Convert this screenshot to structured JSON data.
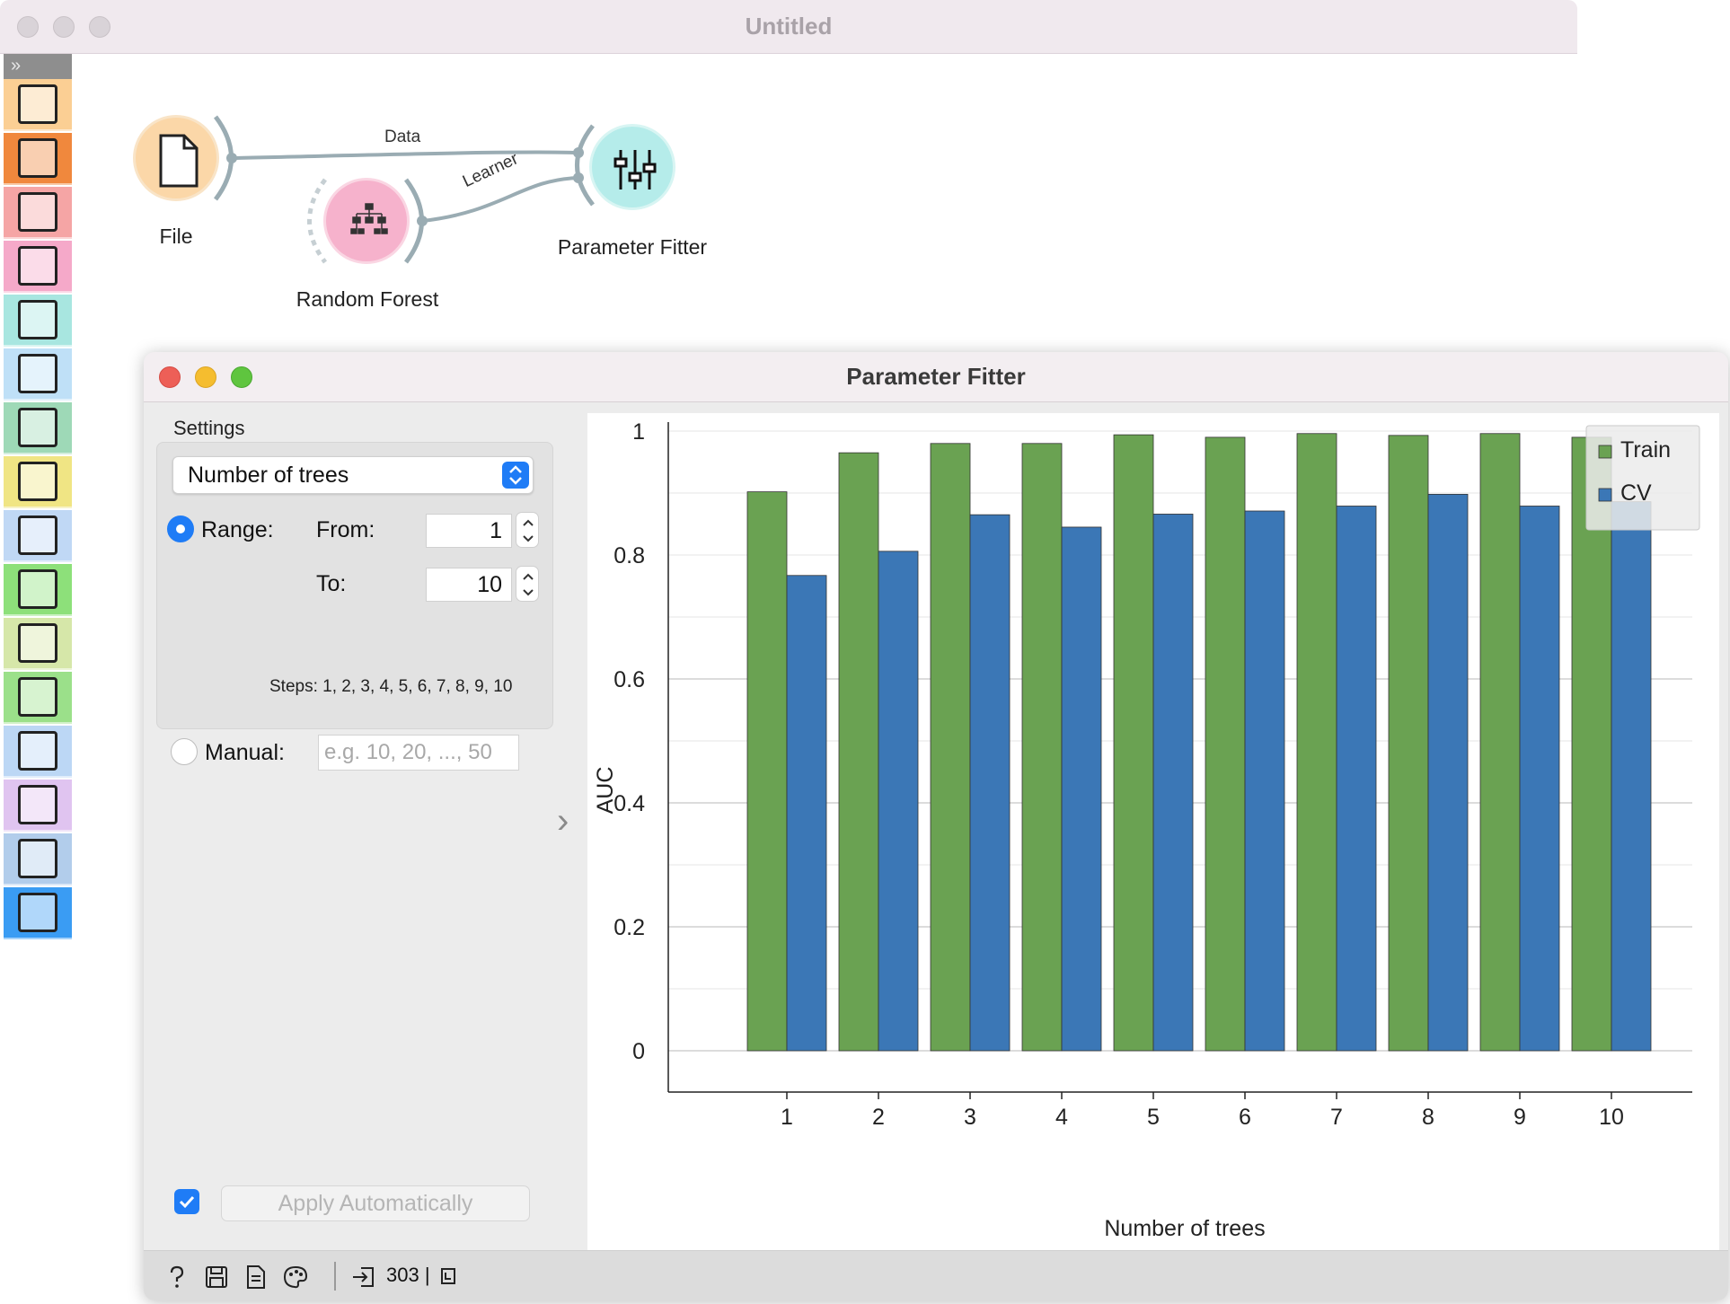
{
  "main_window": {
    "title": "Untitled"
  },
  "toolbox": {
    "toggle": "»",
    "items": [
      {
        "icon": "data-table-icon",
        "color": "#fbcf94"
      },
      {
        "icon": "transform-icon",
        "color": "#f0883d"
      },
      {
        "icon": "scatter-plot-icon",
        "color": "#f5a5a5"
      },
      {
        "icon": "tree-icon",
        "color": "#f5a9c9"
      },
      {
        "icon": "tic-tac-toe-icon",
        "color": "#a8e6e0"
      },
      {
        "icon": "clusters-icon",
        "color": "#bfe0f7"
      },
      {
        "icon": "worker-icon",
        "color": "#9ed9b7"
      },
      {
        "icon": "image-icon",
        "color": "#f0e584"
      },
      {
        "icon": "venn-icon",
        "color": "#c0d8f5"
      },
      {
        "icon": "network-icon",
        "color": "#8de07a"
      },
      {
        "icon": "blocks-icon",
        "color": "#d6e7a9"
      },
      {
        "icon": "globe-icon",
        "color": "#9be08a"
      },
      {
        "icon": "rainbow-icon",
        "color": "#bcd7f5"
      },
      {
        "icon": "people-icon",
        "color": "#e0c4f0"
      },
      {
        "icon": "text-icon",
        "color": "#b2cdeb"
      },
      {
        "icon": "timeseries-icon",
        "color": "#3a9cf3"
      }
    ]
  },
  "canvas": {
    "nodes": {
      "file": {
        "label": "File"
      },
      "random_forest": {
        "label": "Random Forest"
      },
      "parameter_fitter": {
        "label": "Parameter Fitter"
      }
    },
    "links": {
      "data": "Data",
      "learner": "Learner"
    }
  },
  "widget": {
    "title": "Parameter Fitter",
    "settings": {
      "heading": "Settings",
      "parameter": "Number of trees",
      "range_label": "Range:",
      "from_label": "From:",
      "from_value": "1",
      "to_label": "To:",
      "to_value": "10",
      "steps_text": "Steps: 1, 2, 3, 4, 5, 6, 7, 8, 9, 10",
      "manual_label": "Manual:",
      "manual_placeholder": "e.g. 10, 20, ..., 50",
      "range_selected": true
    },
    "apply_automatically": "Apply Automatically",
    "status": {
      "count": "303 |"
    }
  },
  "chart_data": {
    "type": "bar",
    "categories": [
      "1",
      "2",
      "3",
      "4",
      "5",
      "6",
      "7",
      "8",
      "9",
      "10"
    ],
    "series": [
      {
        "name": "Train",
        "color": "#6aa252",
        "values": [
          0.902,
          0.965,
          0.98,
          0.98,
          0.994,
          0.99,
          0.996,
          0.993,
          0.996,
          0.99
        ]
      },
      {
        "name": "CV",
        "color": "#3b77b6",
        "values": [
          0.767,
          0.806,
          0.865,
          0.845,
          0.866,
          0.871,
          0.879,
          0.898,
          0.879,
          0.886
        ]
      }
    ],
    "xlabel": "Number of trees",
    "ylabel": "AUC",
    "ylim": [
      0,
      1
    ],
    "yticks": [
      "0",
      "0.2",
      "0.4",
      "0.6",
      "0.8",
      "1"
    ],
    "ytick_values": [
      0,
      0.2,
      0.4,
      0.6,
      0.8,
      1
    ],
    "grid": true,
    "legend_position": "top-right"
  }
}
